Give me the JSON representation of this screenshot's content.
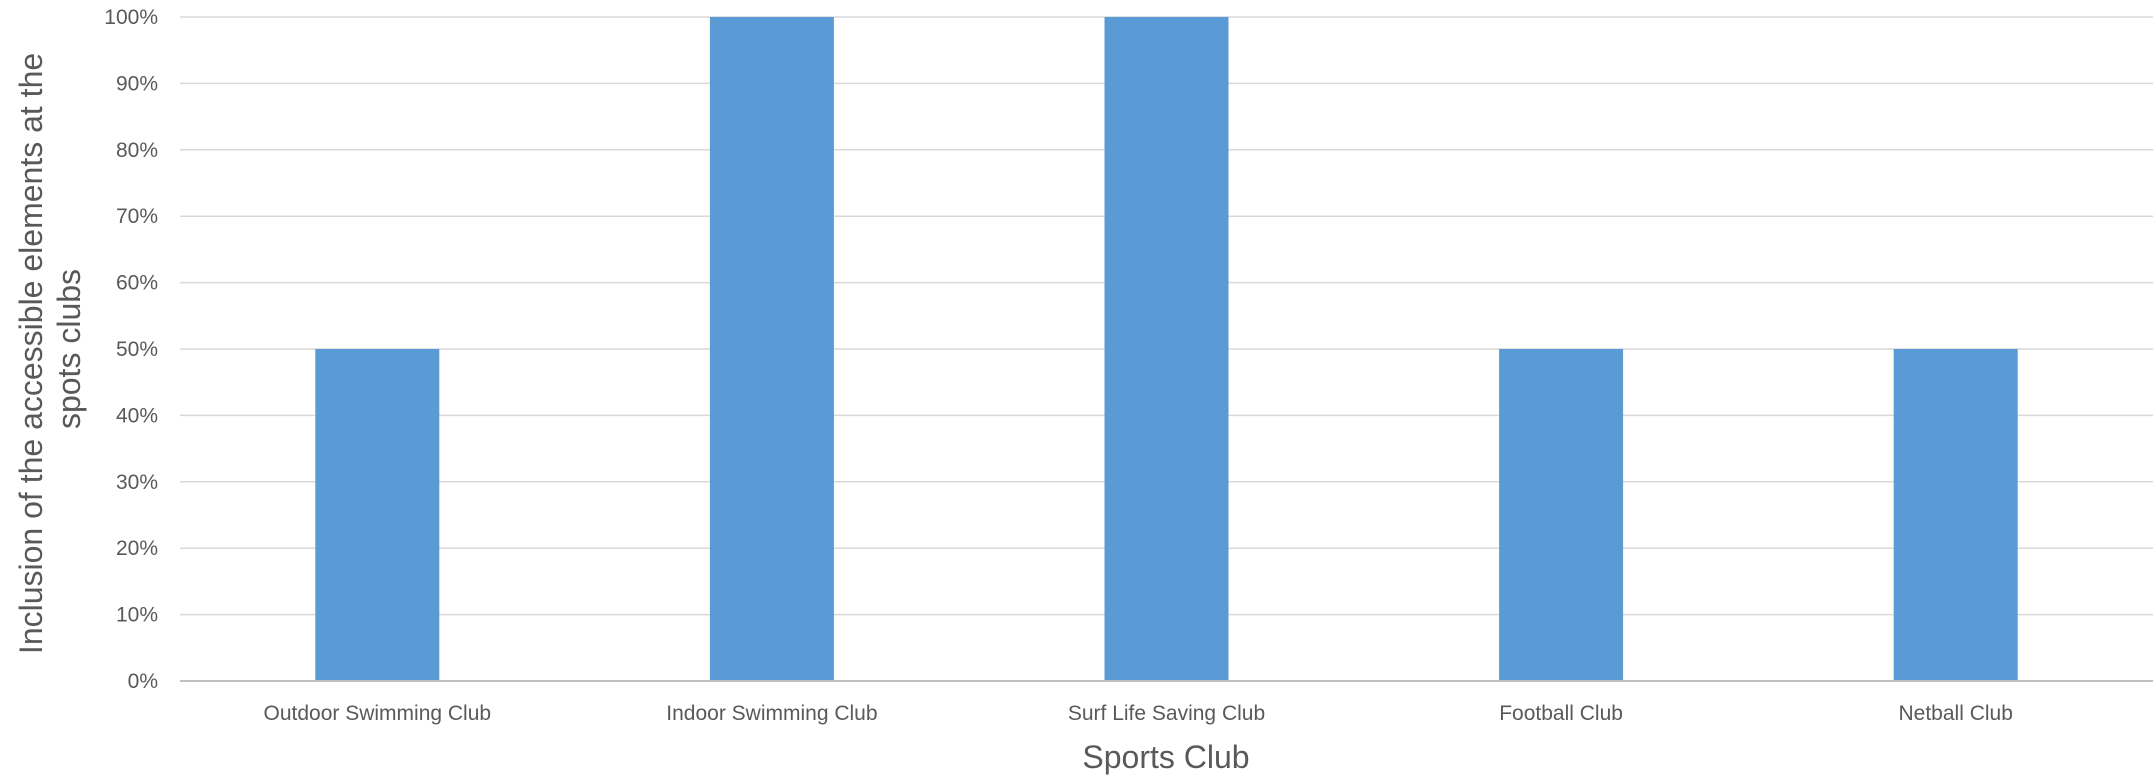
{
  "chart_data": {
    "type": "bar",
    "categories": [
      "Outdoor Swimming Club",
      "Indoor Swimming Club",
      "Surf Life Saving Club",
      "Football Club",
      "Netball Club"
    ],
    "values": [
      0.5,
      1.0,
      1.0,
      0.5,
      0.5
    ],
    "xlabel": "Sports Club",
    "ylabel_lines": [
      "Inclusion of the accessible elements at the",
      "spots clubs"
    ],
    "ylim": [
      0,
      1
    ],
    "yticks": [
      0,
      0.1,
      0.2,
      0.3,
      0.4,
      0.5,
      0.6,
      0.7,
      0.8,
      0.9,
      1.0
    ],
    "ytick_labels": [
      "0%",
      "10%",
      "20%",
      "30%",
      "40%",
      "50%",
      "60%",
      "70%",
      "80%",
      "90%",
      "100%"
    ],
    "grid": true,
    "legend": "none",
    "colors": {
      "bar": "#5B9BD5",
      "grid": "#D9D9D9",
      "axis": "#BFBFBF"
    }
  }
}
